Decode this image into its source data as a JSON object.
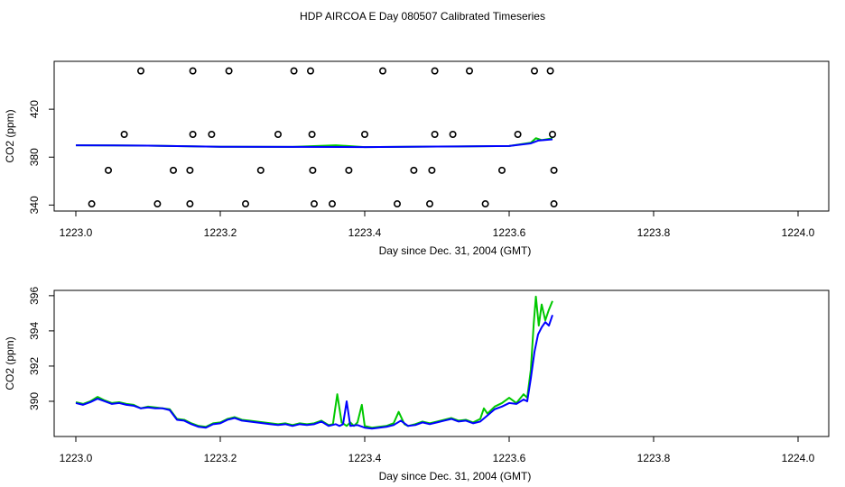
{
  "title": "HDP AIRCOA E  Day 080507  Calibrated Timeseries",
  "colors": {
    "series_a": "#00c800",
    "series_b": "#0000ff",
    "markers": "#000000"
  },
  "chart_data": [
    {
      "type": "scatter",
      "panel": "top",
      "xlabel": "Day since Dec. 31, 2004 (GMT)",
      "ylabel": "CO2 (ppm)",
      "xlim": [
        1223.0,
        1224.0
      ],
      "ylim": [
        335,
        460
      ],
      "x_ticks": [
        1223.0,
        1223.2,
        1223.4,
        1223.6,
        1223.8,
        1224.0
      ],
      "x_tick_labels": [
        "1223.0",
        "1223.2",
        "1223.4",
        "1223.6",
        "1223.8",
        "1224.0"
      ],
      "y_ticks": [
        340,
        380,
        420
      ],
      "y_tick_labels": [
        "340",
        "380",
        "420"
      ],
      "grid": false,
      "markers": {
        "style": "open-circle",
        "points": [
          [
            1223.09,
            452
          ],
          [
            1223.162,
            452
          ],
          [
            1223.212,
            452
          ],
          [
            1223.302,
            452
          ],
          [
            1223.325,
            452
          ],
          [
            1223.425,
            452
          ],
          [
            1223.497,
            452
          ],
          [
            1223.545,
            452
          ],
          [
            1223.635,
            452
          ],
          [
            1223.657,
            452
          ],
          [
            1223.067,
            399
          ],
          [
            1223.162,
            399
          ],
          [
            1223.188,
            399
          ],
          [
            1223.28,
            399
          ],
          [
            1223.327,
            399
          ],
          [
            1223.4,
            399
          ],
          [
            1223.497,
            399
          ],
          [
            1223.522,
            399
          ],
          [
            1223.612,
            399
          ],
          [
            1223.66,
            399
          ],
          [
            1223.045,
            369
          ],
          [
            1223.135,
            369
          ],
          [
            1223.158,
            369
          ],
          [
            1223.256,
            369
          ],
          [
            1223.328,
            369
          ],
          [
            1223.378,
            369
          ],
          [
            1223.468,
            369
          ],
          [
            1223.493,
            369
          ],
          [
            1223.59,
            369
          ],
          [
            1223.662,
            369
          ],
          [
            1223.022,
            341
          ],
          [
            1223.113,
            341
          ],
          [
            1223.158,
            341
          ],
          [
            1223.235,
            341
          ],
          [
            1223.33,
            341
          ],
          [
            1223.355,
            341
          ],
          [
            1223.445,
            341
          ],
          [
            1223.49,
            341
          ],
          [
            1223.567,
            341
          ],
          [
            1223.662,
            341
          ]
        ]
      },
      "series": [
        {
          "name": "",
          "color": "#00c800",
          "points": [
            [
              1223.0,
              389.9
            ],
            [
              1223.1,
              389.6
            ],
            [
              1223.2,
              388.7
            ],
            [
              1223.3,
              388.6
            ],
            [
              1223.36,
              389.9
            ],
            [
              1223.4,
              388.4
            ],
            [
              1223.5,
              388.8
            ],
            [
              1223.6,
              389.3
            ],
            [
              1223.63,
              392.0
            ],
            [
              1223.637,
              395.8
            ],
            [
              1223.645,
              394.2
            ],
            [
              1223.66,
              395.7
            ]
          ]
        },
        {
          "name": "",
          "color": "#0000ff",
          "points": [
            [
              1223.0,
              389.9
            ],
            [
              1223.1,
              389.6
            ],
            [
              1223.2,
              388.7
            ],
            [
              1223.3,
              388.6
            ],
            [
              1223.4,
              388.4
            ],
            [
              1223.5,
              388.8
            ],
            [
              1223.6,
              389.3
            ],
            [
              1223.63,
              391.5
            ],
            [
              1223.64,
              393.8
            ],
            [
              1223.66,
              394.9
            ]
          ]
        }
      ]
    },
    {
      "type": "line",
      "panel": "bottom",
      "xlabel": "Day since Dec. 31, 2004 (GMT)",
      "ylabel": "CO2 (ppm)",
      "xlim": [
        1223.0,
        1224.0
      ],
      "ylim": [
        388.0,
        396.3
      ],
      "x_ticks": [
        1223.0,
        1223.2,
        1223.4,
        1223.6,
        1223.8,
        1224.0
      ],
      "x_tick_labels": [
        "1223.0",
        "1223.2",
        "1223.4",
        "1223.6",
        "1223.8",
        "1224.0"
      ],
      "y_ticks": [
        390,
        392,
        394,
        396
      ],
      "y_tick_labels": [
        "390",
        "392",
        "394",
        "396"
      ],
      "grid": false,
      "series": [
        {
          "name": "",
          "color": "#00c800",
          "points": [
            [
              1223.0,
              389.95
            ],
            [
              1223.01,
              389.85
            ],
            [
              1223.02,
              390.0
            ],
            [
              1223.03,
              390.25
            ],
            [
              1223.04,
              390.05
            ],
            [
              1223.05,
              389.9
            ],
            [
              1223.06,
              389.95
            ],
            [
              1223.07,
              389.85
            ],
            [
              1223.08,
              389.8
            ],
            [
              1223.09,
              389.6
            ],
            [
              1223.1,
              389.7
            ],
            [
              1223.11,
              389.65
            ],
            [
              1223.12,
              389.6
            ],
            [
              1223.13,
              389.55
            ],
            [
              1223.14,
              389.0
            ],
            [
              1223.15,
              388.95
            ],
            [
              1223.16,
              388.75
            ],
            [
              1223.17,
              388.6
            ],
            [
              1223.18,
              388.55
            ],
            [
              1223.19,
              388.75
            ],
            [
              1223.2,
              388.8
            ],
            [
              1223.21,
              389.0
            ],
            [
              1223.22,
              389.1
            ],
            [
              1223.23,
              388.95
            ],
            [
              1223.24,
              388.9
            ],
            [
              1223.25,
              388.85
            ],
            [
              1223.26,
              388.8
            ],
            [
              1223.27,
              388.75
            ],
            [
              1223.28,
              388.7
            ],
            [
              1223.29,
              388.75
            ],
            [
              1223.3,
              388.65
            ],
            [
              1223.31,
              388.75
            ],
            [
              1223.32,
              388.7
            ],
            [
              1223.33,
              388.75
            ],
            [
              1223.34,
              388.9
            ],
            [
              1223.35,
              388.65
            ],
            [
              1223.356,
              388.7
            ],
            [
              1223.362,
              390.4
            ],
            [
              1223.368,
              388.8
            ],
            [
              1223.375,
              388.6
            ],
            [
              1223.38,
              388.8
            ],
            [
              1223.385,
              388.6
            ],
            [
              1223.39,
              388.8
            ],
            [
              1223.396,
              389.8
            ],
            [
              1223.4,
              388.6
            ],
            [
              1223.41,
              388.5
            ],
            [
              1223.42,
              388.55
            ],
            [
              1223.43,
              388.6
            ],
            [
              1223.44,
              388.75
            ],
            [
              1223.447,
              389.4
            ],
            [
              1223.455,
              388.7
            ],
            [
              1223.46,
              388.6
            ],
            [
              1223.47,
              388.7
            ],
            [
              1223.48,
              388.85
            ],
            [
              1223.49,
              388.75
            ],
            [
              1223.5,
              388.85
            ],
            [
              1223.51,
              388.95
            ],
            [
              1223.52,
              389.05
            ],
            [
              1223.53,
              388.9
            ],
            [
              1223.54,
              388.95
            ],
            [
              1223.55,
              388.8
            ],
            [
              1223.56,
              389.0
            ],
            [
              1223.565,
              389.6
            ],
            [
              1223.57,
              389.3
            ],
            [
              1223.58,
              389.7
            ],
            [
              1223.59,
              389.9
            ],
            [
              1223.6,
              390.2
            ],
            [
              1223.61,
              389.9
            ],
            [
              1223.62,
              390.4
            ],
            [
              1223.625,
              390.2
            ],
            [
              1223.63,
              391.8
            ],
            [
              1223.634,
              394.4
            ],
            [
              1223.637,
              395.95
            ],
            [
              1223.641,
              394.3
            ],
            [
              1223.645,
              395.5
            ],
            [
              1223.65,
              394.6
            ],
            [
              1223.655,
              395.2
            ],
            [
              1223.66,
              395.7
            ]
          ]
        },
        {
          "name": "",
          "color": "#0000ff",
          "points": [
            [
              1223.0,
              389.9
            ],
            [
              1223.01,
              389.8
            ],
            [
              1223.02,
              389.95
            ],
            [
              1223.03,
              390.15
            ],
            [
              1223.04,
              390.0
            ],
            [
              1223.05,
              389.85
            ],
            [
              1223.06,
              389.9
            ],
            [
              1223.07,
              389.8
            ],
            [
              1223.08,
              389.75
            ],
            [
              1223.09,
              389.6
            ],
            [
              1223.1,
              389.65
            ],
            [
              1223.11,
              389.6
            ],
            [
              1223.12,
              389.6
            ],
            [
              1223.13,
              389.5
            ],
            [
              1223.14,
              388.95
            ],
            [
              1223.15,
              388.9
            ],
            [
              1223.16,
              388.7
            ],
            [
              1223.17,
              388.55
            ],
            [
              1223.18,
              388.5
            ],
            [
              1223.19,
              388.7
            ],
            [
              1223.2,
              388.75
            ],
            [
              1223.21,
              388.95
            ],
            [
              1223.22,
              389.05
            ],
            [
              1223.23,
              388.9
            ],
            [
              1223.24,
              388.85
            ],
            [
              1223.25,
              388.8
            ],
            [
              1223.26,
              388.75
            ],
            [
              1223.27,
              388.7
            ],
            [
              1223.28,
              388.65
            ],
            [
              1223.29,
              388.7
            ],
            [
              1223.3,
              388.6
            ],
            [
              1223.31,
              388.7
            ],
            [
              1223.32,
              388.65
            ],
            [
              1223.33,
              388.7
            ],
            [
              1223.34,
              388.85
            ],
            [
              1223.35,
              388.6
            ],
            [
              1223.36,
              388.7
            ],
            [
              1223.365,
              388.6
            ],
            [
              1223.37,
              388.7
            ],
            [
              1223.375,
              390.0
            ],
            [
              1223.38,
              388.6
            ],
            [
              1223.39,
              388.65
            ],
            [
              1223.4,
              388.5
            ],
            [
              1223.41,
              388.45
            ],
            [
              1223.42,
              388.5
            ],
            [
              1223.43,
              388.55
            ],
            [
              1223.44,
              388.65
            ],
            [
              1223.45,
              388.9
            ],
            [
              1223.46,
              388.6
            ],
            [
              1223.47,
              388.65
            ],
            [
              1223.48,
              388.8
            ],
            [
              1223.49,
              388.7
            ],
            [
              1223.5,
              388.8
            ],
            [
              1223.51,
              388.9
            ],
            [
              1223.52,
              389.0
            ],
            [
              1223.53,
              388.85
            ],
            [
              1223.54,
              388.9
            ],
            [
              1223.55,
              388.75
            ],
            [
              1223.56,
              388.85
            ],
            [
              1223.57,
              389.2
            ],
            [
              1223.58,
              389.55
            ],
            [
              1223.59,
              389.7
            ],
            [
              1223.6,
              389.9
            ],
            [
              1223.61,
              389.85
            ],
            [
              1223.62,
              390.1
            ],
            [
              1223.625,
              390.0
            ],
            [
              1223.63,
              391.3
            ],
            [
              1223.635,
              392.8
            ],
            [
              1223.64,
              393.8
            ],
            [
              1223.645,
              394.2
            ],
            [
              1223.65,
              394.5
            ],
            [
              1223.655,
              394.3
            ],
            [
              1223.66,
              394.9
            ]
          ]
        }
      ]
    }
  ]
}
